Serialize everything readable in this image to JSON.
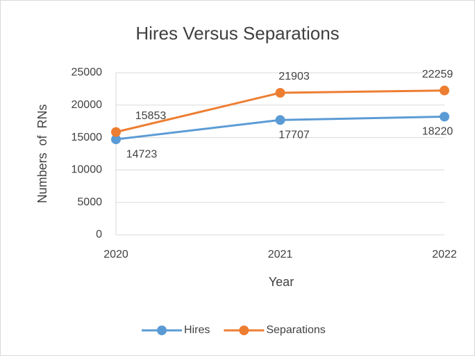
{
  "chart_data": {
    "type": "line",
    "title": "Hires Versus Separations",
    "x_label": "Year",
    "y_label": "Numbers  of  RNs",
    "categories": [
      "2020",
      "2021",
      "2022"
    ],
    "series": [
      {
        "name": "Hires",
        "color": "#5b9bd5",
        "values": [
          14723,
          17707,
          18220
        ]
      },
      {
        "name": "Separations",
        "color": "#ed7d31",
        "values": [
          15853,
          21903,
          22259
        ]
      }
    ],
    "ylim": [
      0,
      25000
    ],
    "yticks": [
      0,
      5000,
      10000,
      15000,
      20000,
      25000
    ],
    "grid": true,
    "legend": "bottom"
  }
}
